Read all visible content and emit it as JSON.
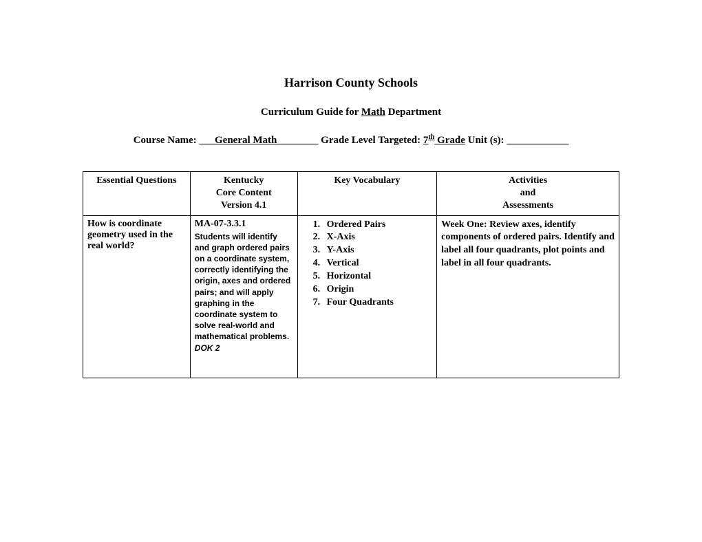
{
  "header": {
    "title": "Harrison County Schools",
    "subtitle_prefix": "Curriculum Guide for ",
    "subtitle_subject": "Math",
    "subtitle_suffix": " Department",
    "course_name_label": "Course Name: ",
    "course_name_blank_pre": "___",
    "course_name_value": "General Math",
    "course_name_blank_post": "________",
    "grade_label": " Grade Level Targeted: ",
    "grade_value_num": "7",
    "grade_value_sup": "th",
    "grade_value_suffix": " Grade",
    "unit_label": "    Unit (s): ",
    "unit_blank": "____________"
  },
  "table": {
    "headers": {
      "col1": "Essential Questions",
      "col2": "Kentucky\nCore Content\nVersion 4.1",
      "col3": "Key Vocabulary",
      "col4": "Activities\nand\nAssessments"
    },
    "row": {
      "essential_question": "How is coordinate geometry used in the real world?",
      "standard_code": "MA-07-3.3.1",
      "standard_desc": "Students will identify and graph ordered pairs on a coordinate system, correctly identifying the origin, axes and ordered pairs; and will apply graphing in the coordinate system to solve real-world and mathematical problems.",
      "dok": "DOK 2",
      "vocab": {
        "item1": "Ordered Pairs",
        "item2": "X-Axis",
        "item3": "Y-Axis",
        "item4": "Vertical",
        "item5": "Horizontal",
        "item6": "Origin",
        "item7": "Four Quadrants"
      },
      "activities": "Week One:  Review axes, identify components of ordered pairs. Identify and label all four quadrants, plot points and label in all four quadrants."
    }
  }
}
